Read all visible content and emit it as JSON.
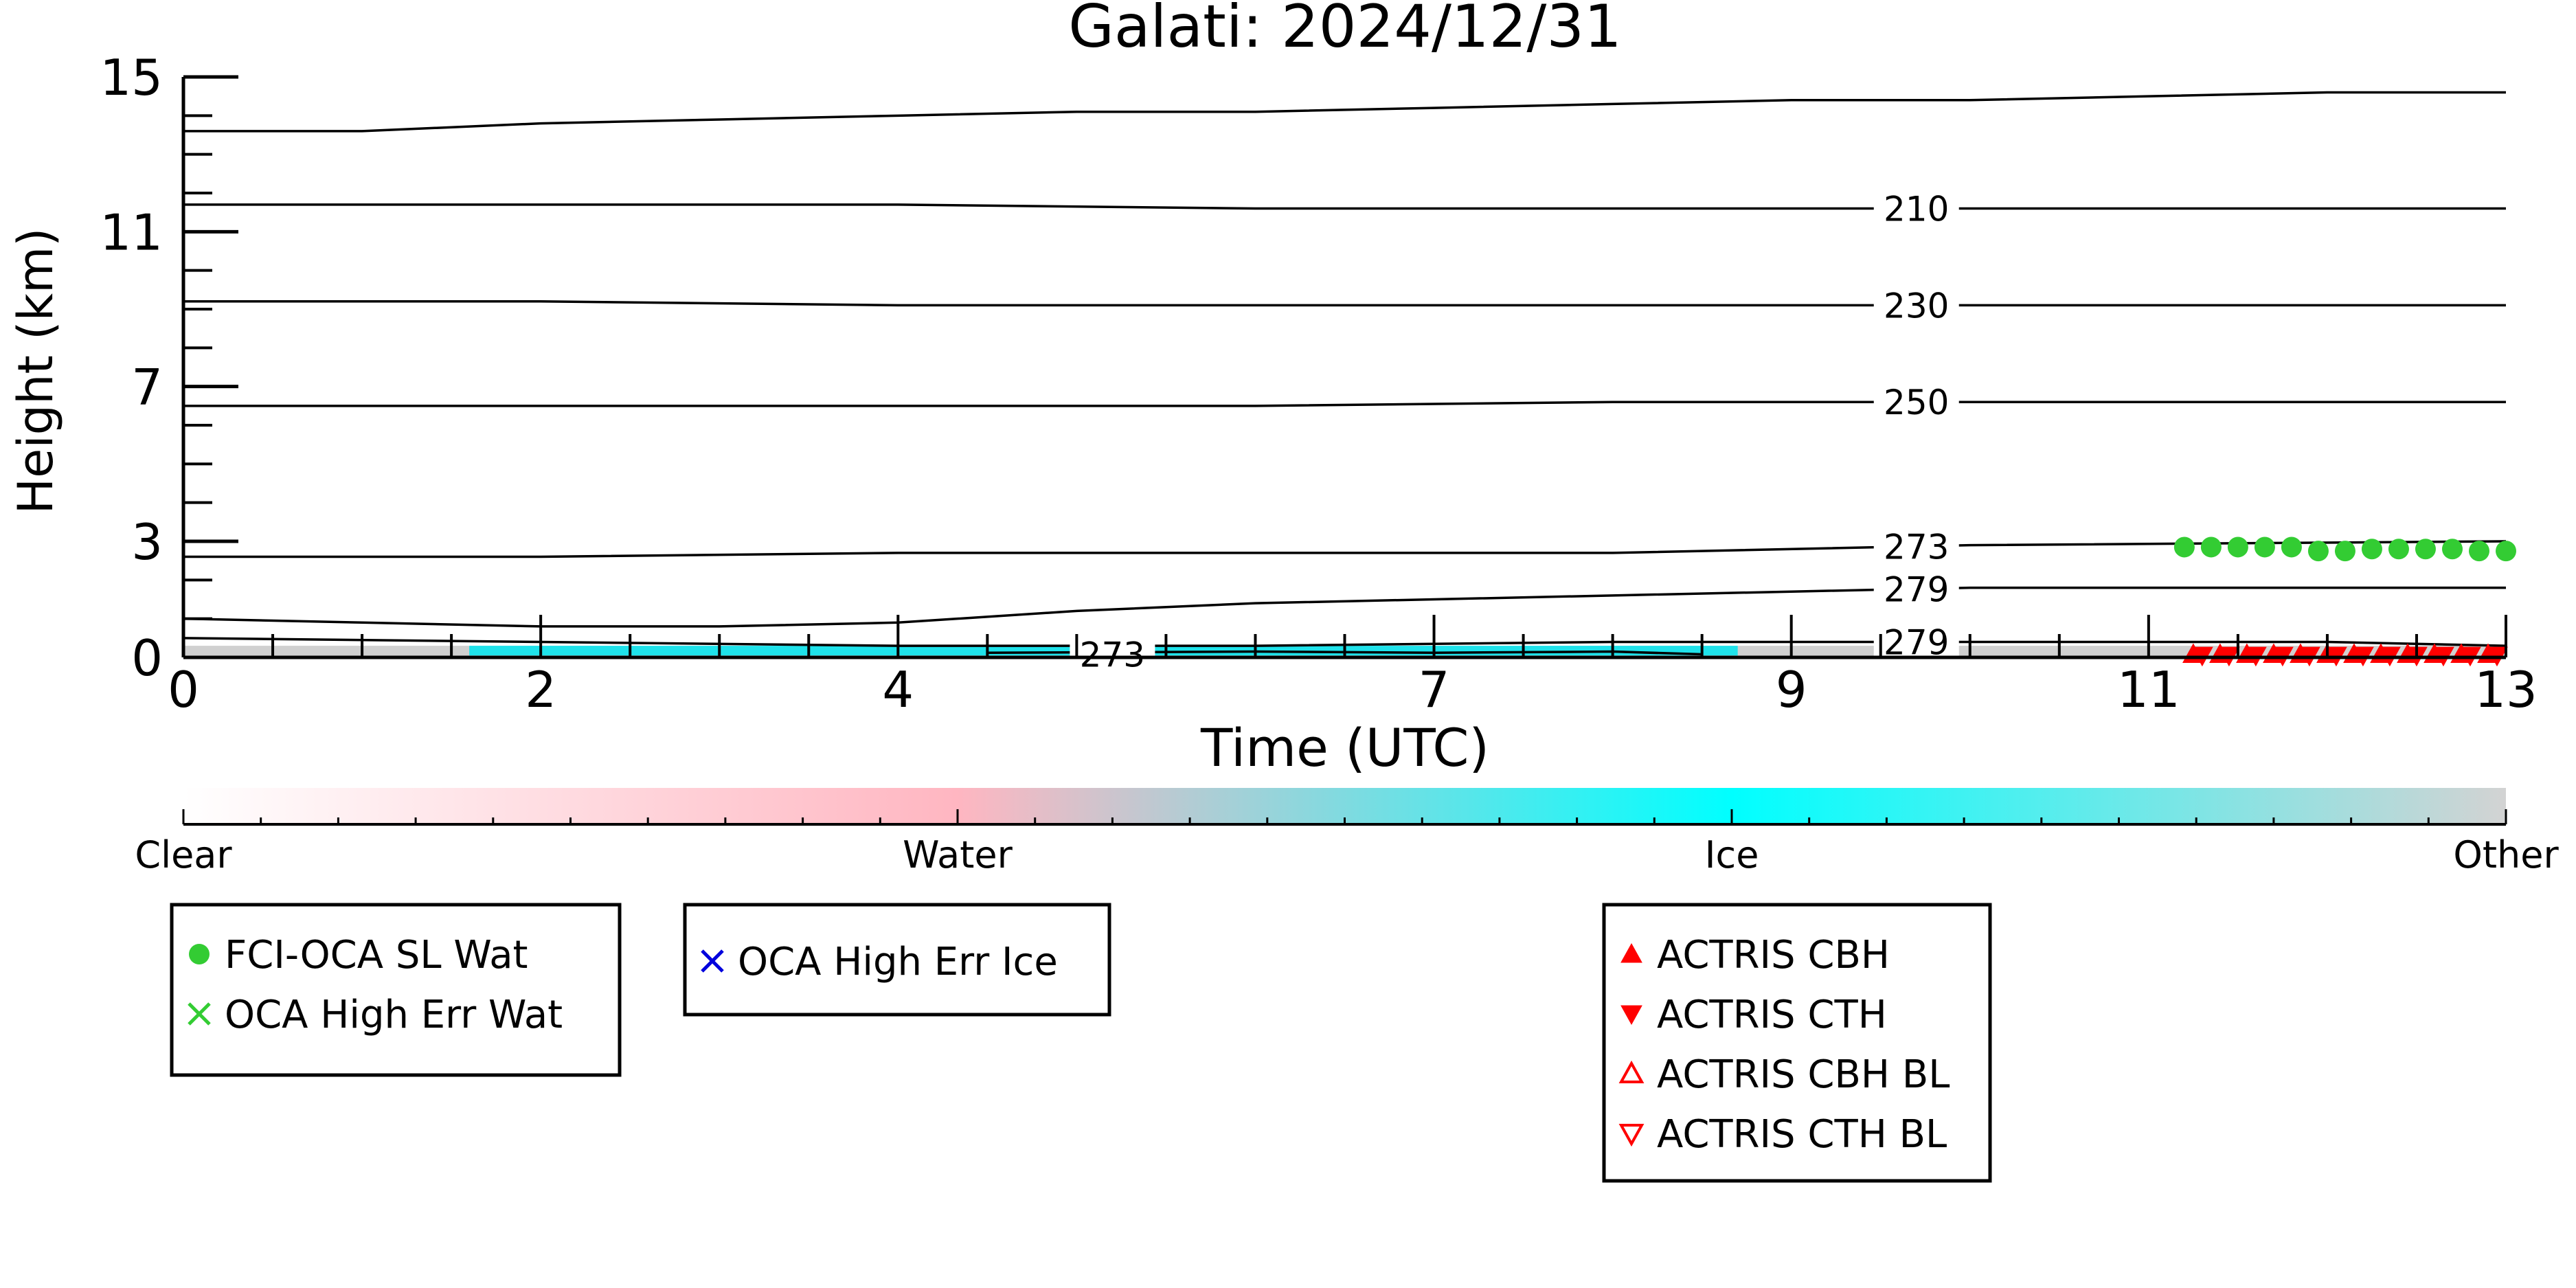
{
  "chart_data": {
    "type": "line",
    "title": "Galati: 2024/12/31",
    "xlabel": "Time (UTC)",
    "ylabel": "Height (km)",
    "xlim": [
      0,
      13
    ],
    "ylim": [
      0,
      15
    ],
    "x_ticks": [
      0,
      2,
      4,
      7,
      9,
      11,
      13
    ],
    "y_ticks": [
      0,
      3,
      7,
      11,
      15
    ],
    "grid": false,
    "contours": [
      {
        "label": "",
        "x": [
          0,
          1,
          2,
          3,
          4,
          5,
          6,
          7,
          8,
          9,
          10,
          11,
          12,
          13
        ],
        "y": [
          13.6,
          13.6,
          13.8,
          13.9,
          14.0,
          14.1,
          14.1,
          14.2,
          14.3,
          14.4,
          14.4,
          14.5,
          14.6,
          14.6
        ]
      },
      {
        "label": "210",
        "x": [
          0,
          2,
          4,
          6,
          8,
          10,
          13
        ],
        "y": [
          11.7,
          11.7,
          11.7,
          11.6,
          11.6,
          11.6,
          11.6
        ]
      },
      {
        "label": "230",
        "x": [
          0,
          2,
          4,
          6,
          8,
          10,
          13
        ],
        "y": [
          9.2,
          9.2,
          9.1,
          9.1,
          9.1,
          9.1,
          9.1
        ]
      },
      {
        "label": "250",
        "x": [
          0,
          2,
          4,
          6,
          8,
          10,
          13
        ],
        "y": [
          6.5,
          6.5,
          6.5,
          6.5,
          6.6,
          6.6,
          6.6
        ]
      },
      {
        "label": "273",
        "x": [
          0,
          2,
          4,
          6,
          8,
          10,
          13
        ],
        "y": [
          2.6,
          2.6,
          2.7,
          2.7,
          2.7,
          2.9,
          3.0
        ]
      },
      {
        "label": "279",
        "x": [
          0,
          1,
          2,
          3,
          4,
          5,
          6,
          7,
          8,
          9,
          10,
          11,
          12,
          13
        ],
        "y": [
          1.0,
          0.9,
          0.8,
          0.8,
          0.9,
          1.2,
          1.4,
          1.5,
          1.6,
          1.7,
          1.8,
          1.8,
          1.8,
          1.8
        ]
      },
      {
        "label": "279",
        "x": [
          0,
          2,
          4,
          6,
          8,
          10,
          12,
          13
        ],
        "y": [
          0.5,
          0.4,
          0.3,
          0.3,
          0.4,
          0.4,
          0.4,
          0.3
        ]
      },
      {
        "label": "273",
        "x": [
          4.5,
          6,
          7,
          8,
          8.5
        ],
        "y": [
          0.12,
          0.15,
          0.12,
          0.15,
          0.08
        ]
      }
    ],
    "series": [
      {
        "name": "FCI-OCA SL Wat",
        "marker": "filled-circle",
        "color": "#33cc33",
        "x": [
          11.2,
          11.35,
          11.5,
          11.65,
          11.8,
          11.95,
          12.1,
          12.25,
          12.4,
          12.55,
          12.7,
          12.85,
          13.0
        ],
        "y": [
          2.85,
          2.85,
          2.85,
          2.85,
          2.85,
          2.75,
          2.75,
          2.8,
          2.8,
          2.8,
          2.8,
          2.75,
          2.75
        ]
      },
      {
        "name": "OCA High Err Wat",
        "marker": "x",
        "color": "#33cc33",
        "x": [],
        "y": []
      },
      {
        "name": "OCA High Err Ice",
        "marker": "x",
        "color": "#0000dd",
        "x": [],
        "y": []
      },
      {
        "name": "ACTRIS CBH",
        "marker": "filled-triangle-up",
        "color": "#ff0000",
        "x": [
          11.25,
          11.4,
          11.55,
          11.7,
          11.85,
          12.0,
          12.15,
          12.3,
          12.45,
          12.6,
          12.75,
          12.9
        ],
        "y": [
          0.08,
          0.08,
          0.08,
          0.08,
          0.08,
          0.08,
          0.08,
          0.08,
          0.08,
          0.08,
          0.08,
          0.08
        ]
      },
      {
        "name": "ACTRIS CTH",
        "marker": "filled-triangle-down",
        "color": "#ff0000",
        "x": [
          11.3,
          11.45,
          11.6,
          11.75,
          11.9,
          12.05,
          12.2,
          12.35,
          12.5,
          12.65,
          12.8,
          12.95
        ],
        "y": [
          0.05,
          0.05,
          0.05,
          0.05,
          0.05,
          0.05,
          0.05,
          0.05,
          0.05,
          0.05,
          0.05,
          0.05
        ]
      },
      {
        "name": "ACTRIS CBH BL",
        "marker": "open-triangle-up",
        "color": "#ff0000",
        "x": [],
        "y": []
      },
      {
        "name": "ACTRIS CTH BL",
        "marker": "open-triangle-down",
        "color": "#ff0000",
        "x": [],
        "y": []
      }
    ],
    "phase_strip": {
      "bands": [
        {
          "phase": "Other",
          "color": "#c8c8c8",
          "x": [
            0,
            13
          ],
          "y": [
            0,
            0.3
          ]
        },
        {
          "phase": "Ice",
          "color": "#00e5ee",
          "x": [
            1.6,
            8.7
          ],
          "y": [
            0.05,
            0.3
          ]
        }
      ]
    },
    "colorbar": {
      "categories": [
        "Clear",
        "Water",
        "Ice",
        "Other"
      ],
      "stops": [
        {
          "value": 0,
          "color": "#ffffff"
        },
        {
          "value": 1,
          "color": "#ffb6c1"
        },
        {
          "value": 2,
          "color": "#00ffff"
        },
        {
          "value": 3,
          "color": "#d3d3d3"
        }
      ]
    },
    "legends": [
      {
        "entries": [
          "FCI-OCA SL Wat",
          "OCA High Err Wat"
        ]
      },
      {
        "entries": [
          "OCA High Err Ice"
        ]
      },
      {
        "entries": [
          "ACTRIS CBH",
          "ACTRIS CTH",
          "ACTRIS CBH BL",
          "ACTRIS CTH BL"
        ]
      }
    ]
  }
}
